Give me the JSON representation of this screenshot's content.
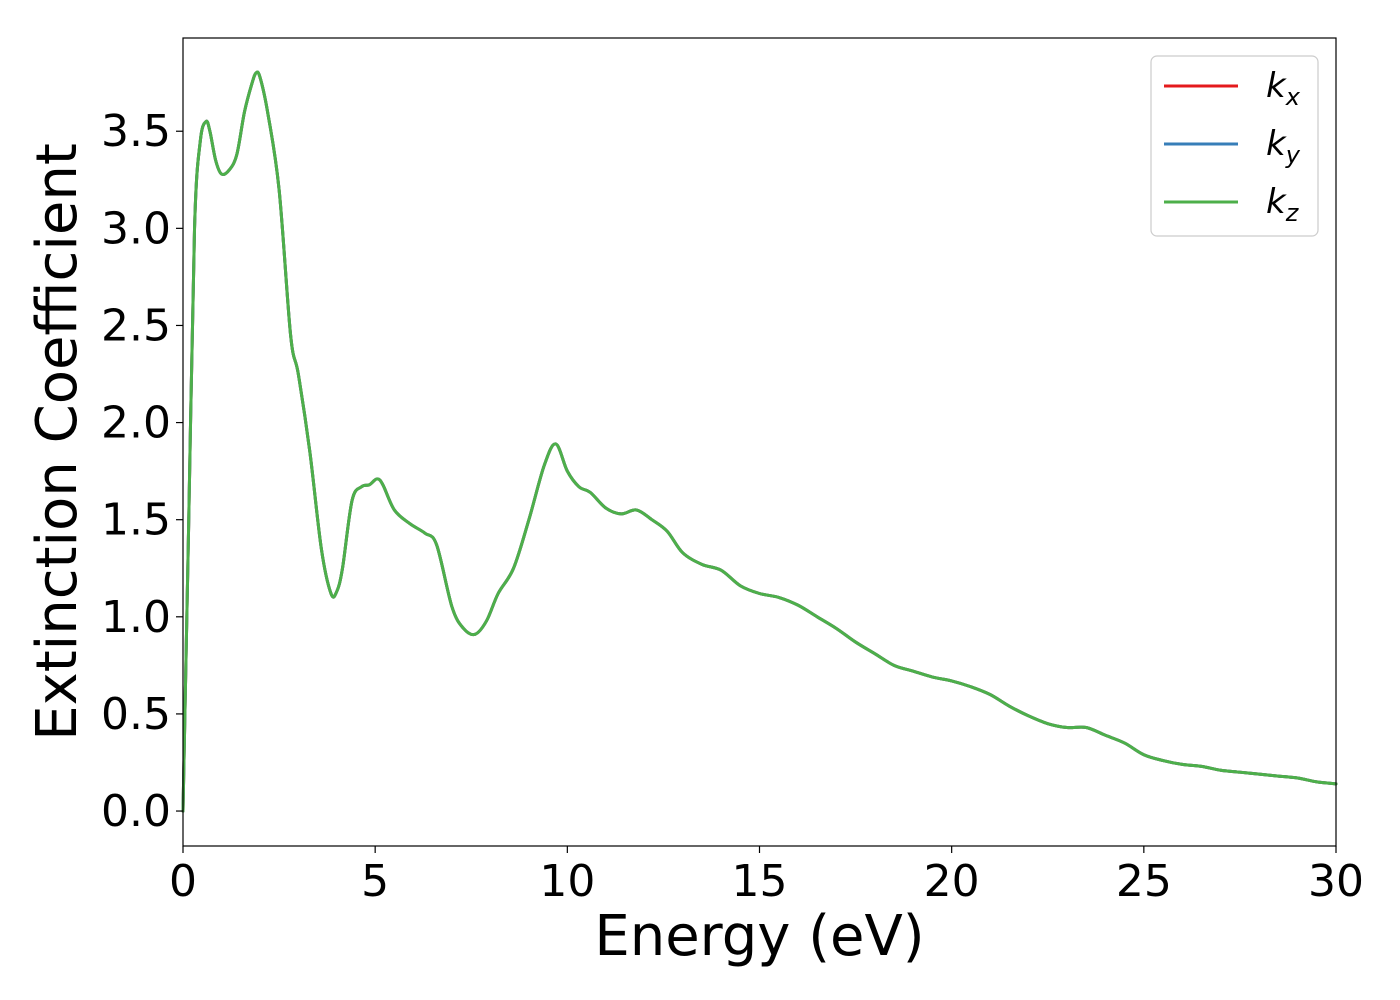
{
  "chart_data": {
    "type": "line",
    "xlabel": "Energy (eV)",
    "ylabel": "Extinction Coefficient",
    "xlim": [
      0,
      30
    ],
    "ylim": [
      -0.18,
      3.98
    ],
    "xticks": [
      {
        "value": 0,
        "label": "0"
      },
      {
        "value": 5,
        "label": "5"
      },
      {
        "value": 10,
        "label": "10"
      },
      {
        "value": 15,
        "label": "15"
      },
      {
        "value": 20,
        "label": "20"
      },
      {
        "value": 25,
        "label": "25"
      },
      {
        "value": 30,
        "label": "30"
      }
    ],
    "yticks": [
      {
        "value": 0.0,
        "label": "0.0"
      },
      {
        "value": 0.5,
        "label": "0.5"
      },
      {
        "value": 1.0,
        "label": "1.0"
      },
      {
        "value": 1.5,
        "label": "1.5"
      },
      {
        "value": 2.0,
        "label": "2.0"
      },
      {
        "value": 2.5,
        "label": "2.5"
      },
      {
        "value": 3.0,
        "label": "3.0"
      },
      {
        "value": 3.5,
        "label": "3.5"
      }
    ],
    "grid": false,
    "legend_position": "top-right",
    "x": [
      0,
      0.15,
      0.3,
      0.45,
      0.6,
      0.7,
      0.85,
      1.0,
      1.2,
      1.4,
      1.6,
      1.8,
      1.9,
      2.0,
      2.2,
      2.5,
      2.8,
      3.0,
      3.3,
      3.6,
      3.85,
      4.0,
      4.15,
      4.4,
      4.65,
      4.85,
      5.05,
      5.2,
      5.5,
      5.9,
      6.3,
      6.6,
      7.0,
      7.3,
      7.6,
      7.9,
      8.2,
      8.6,
      9.0,
      9.4,
      9.7,
      10.0,
      10.3,
      10.6,
      11.0,
      11.4,
      11.8,
      12.2,
      12.6,
      13.0,
      13.5,
      14.0,
      14.5,
      15.0,
      15.5,
      16.0,
      16.5,
      17.0,
      17.5,
      18.0,
      18.5,
      19.0,
      19.5,
      20.0,
      20.5,
      21.0,
      21.5,
      22.0,
      22.5,
      23.0,
      23.5,
      24.0,
      24.5,
      25.0,
      25.5,
      26.0,
      26.5,
      27.0,
      27.5,
      28.0,
      28.5,
      29.0,
      29.5,
      30.0
    ],
    "series": [
      {
        "name": "k_x",
        "legend_base": "k",
        "legend_sub": "x",
        "color": "#e41a1c",
        "values": [
          0.0,
          1.5,
          3.0,
          3.45,
          3.55,
          3.5,
          3.35,
          3.28,
          3.3,
          3.38,
          3.6,
          3.75,
          3.8,
          3.78,
          3.6,
          3.2,
          2.45,
          2.25,
          1.85,
          1.35,
          1.12,
          1.13,
          1.25,
          1.6,
          1.67,
          1.68,
          1.71,
          1.68,
          1.55,
          1.48,
          1.43,
          1.37,
          1.05,
          0.94,
          0.91,
          0.98,
          1.12,
          1.25,
          1.5,
          1.78,
          1.89,
          1.75,
          1.67,
          1.64,
          1.56,
          1.53,
          1.55,
          1.5,
          1.44,
          1.33,
          1.27,
          1.24,
          1.16,
          1.12,
          1.1,
          1.06,
          1.0,
          0.94,
          0.87,
          0.81,
          0.75,
          0.72,
          0.69,
          0.67,
          0.64,
          0.6,
          0.54,
          0.49,
          0.45,
          0.43,
          0.43,
          0.39,
          0.35,
          0.29,
          0.26,
          0.24,
          0.23,
          0.21,
          0.2,
          0.19,
          0.18,
          0.17,
          0.15,
          0.14
        ]
      },
      {
        "name": "k_y",
        "legend_base": "k",
        "legend_sub": "y",
        "color": "#377eb8",
        "values": [
          0.0,
          1.5,
          3.0,
          3.45,
          3.55,
          3.5,
          3.35,
          3.28,
          3.3,
          3.38,
          3.6,
          3.75,
          3.8,
          3.78,
          3.6,
          3.2,
          2.45,
          2.25,
          1.85,
          1.35,
          1.12,
          1.13,
          1.25,
          1.6,
          1.67,
          1.68,
          1.71,
          1.68,
          1.55,
          1.48,
          1.43,
          1.37,
          1.05,
          0.94,
          0.91,
          0.98,
          1.12,
          1.25,
          1.5,
          1.78,
          1.89,
          1.75,
          1.67,
          1.64,
          1.56,
          1.53,
          1.55,
          1.5,
          1.44,
          1.33,
          1.27,
          1.24,
          1.16,
          1.12,
          1.1,
          1.06,
          1.0,
          0.94,
          0.87,
          0.81,
          0.75,
          0.72,
          0.69,
          0.67,
          0.64,
          0.6,
          0.54,
          0.49,
          0.45,
          0.43,
          0.43,
          0.39,
          0.35,
          0.29,
          0.26,
          0.24,
          0.23,
          0.21,
          0.2,
          0.19,
          0.18,
          0.17,
          0.15,
          0.14
        ]
      },
      {
        "name": "k_z",
        "legend_base": "k",
        "legend_sub": "z",
        "color": "#4daf4a",
        "values": [
          0.0,
          1.5,
          3.0,
          3.45,
          3.55,
          3.5,
          3.35,
          3.28,
          3.3,
          3.38,
          3.6,
          3.75,
          3.8,
          3.78,
          3.6,
          3.2,
          2.45,
          2.25,
          1.85,
          1.35,
          1.12,
          1.13,
          1.25,
          1.6,
          1.67,
          1.68,
          1.71,
          1.68,
          1.55,
          1.48,
          1.43,
          1.37,
          1.05,
          0.94,
          0.91,
          0.98,
          1.12,
          1.25,
          1.5,
          1.78,
          1.89,
          1.75,
          1.67,
          1.64,
          1.56,
          1.53,
          1.55,
          1.5,
          1.44,
          1.33,
          1.27,
          1.24,
          1.16,
          1.12,
          1.1,
          1.06,
          1.0,
          0.94,
          0.87,
          0.81,
          0.75,
          0.72,
          0.69,
          0.67,
          0.64,
          0.6,
          0.54,
          0.49,
          0.45,
          0.43,
          0.43,
          0.39,
          0.35,
          0.29,
          0.26,
          0.24,
          0.23,
          0.21,
          0.2,
          0.19,
          0.18,
          0.17,
          0.15,
          0.14
        ]
      }
    ]
  }
}
